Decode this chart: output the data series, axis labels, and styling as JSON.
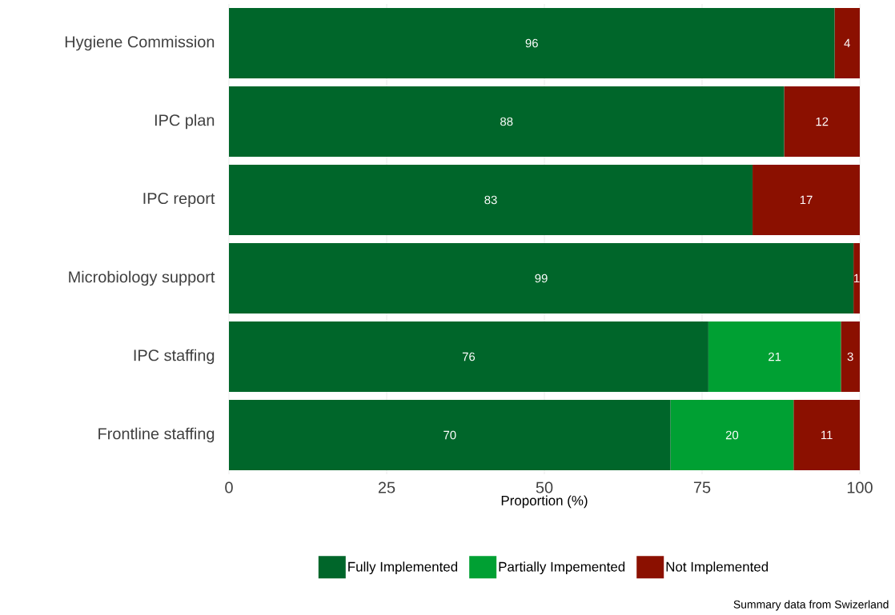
{
  "chart_data": {
    "type": "bar",
    "orientation": "horizontal",
    "stacked": true,
    "xlabel": "Proportion (%)",
    "categories": [
      "Hygiene Commission",
      "IPC plan",
      "IPC report",
      "Microbiology support",
      "IPC staffing",
      "Frontline staffing"
    ],
    "series": [
      {
        "name": "Fully Implemented",
        "color": "#00662a",
        "values": [
          96,
          88,
          83,
          99,
          76,
          70
        ],
        "value_labels": [
          "96",
          "88",
          "83",
          "99",
          "76",
          "70"
        ]
      },
      {
        "name": "Partially Impemented",
        "color": "#00a033",
        "values": [
          0,
          0,
          0,
          0,
          21,
          19.5
        ],
        "value_labels": [
          null,
          null,
          null,
          null,
          "21",
          "20"
        ]
      },
      {
        "name": "Not Implemented",
        "color": "#8b1000",
        "values": [
          4,
          12,
          17,
          1,
          3,
          10.5
        ],
        "value_labels": [
          "4",
          "12",
          "17",
          "1",
          "3",
          "11"
        ]
      }
    ],
    "xlim": [
      0,
      100
    ],
    "xticks": [
      0,
      25,
      50,
      75,
      100
    ],
    "grid": true,
    "legend": "bottom",
    "annotations": [
      "Summary data from Swizerland"
    ]
  }
}
